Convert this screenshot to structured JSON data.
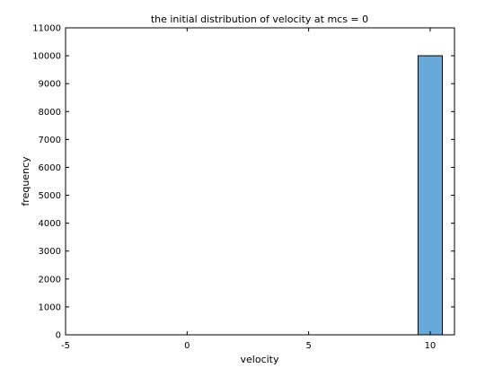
{
  "chart_data": {
    "type": "bar",
    "title": "the initial distribution of velocity at mcs = 0",
    "xlabel": "velocity",
    "ylabel": "frequency",
    "xlim": [
      -5,
      11
    ],
    "ylim": [
      0,
      11000
    ],
    "xticks": [
      -5,
      0,
      5,
      10
    ],
    "yticks": [
      0,
      1000,
      2000,
      3000,
      4000,
      5000,
      6000,
      7000,
      8000,
      9000,
      10000,
      11000
    ],
    "bars": [
      {
        "x0": 9.5,
        "x1": 10.5,
        "value": 10000
      }
    ],
    "bar_color": "#67a9d8",
    "grid": false,
    "legend": "none"
  }
}
